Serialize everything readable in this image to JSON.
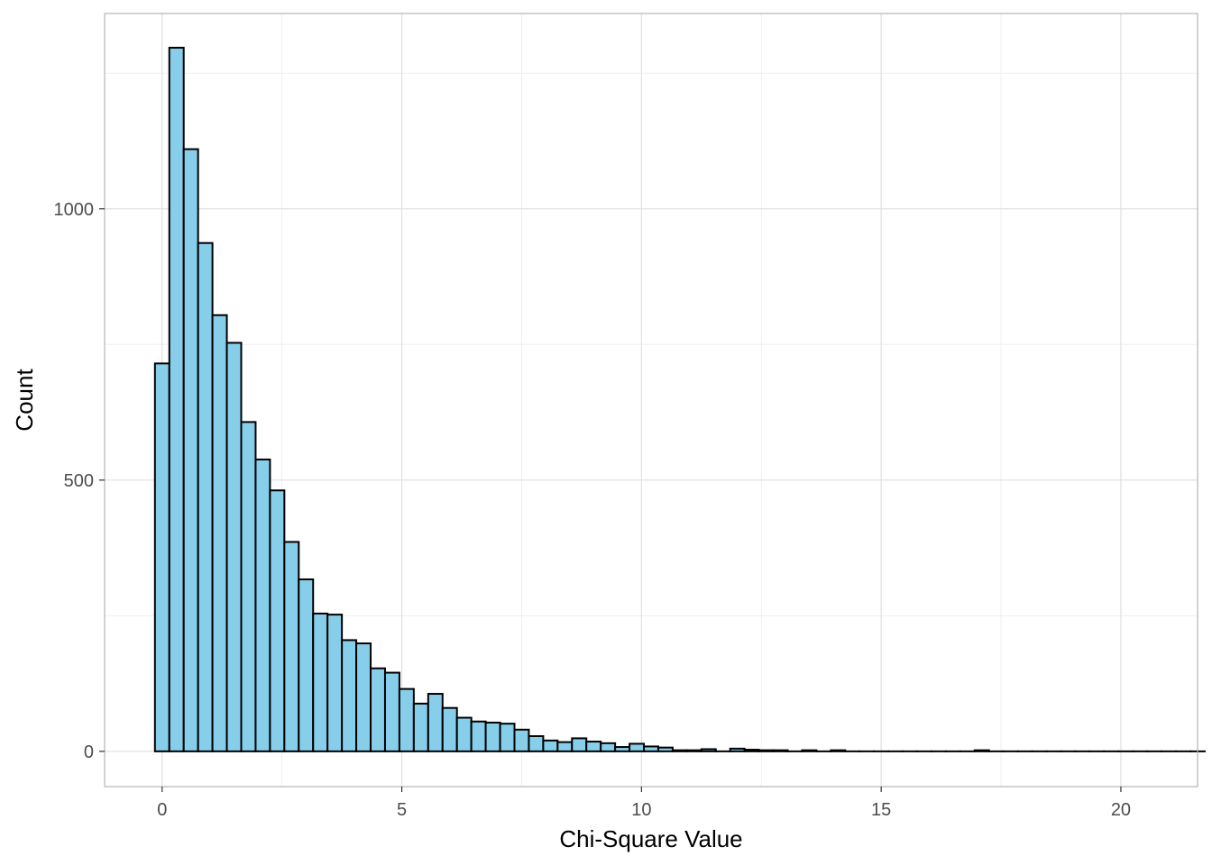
{
  "chart_data": {
    "type": "bar",
    "title": "",
    "xlabel": "Chi-Square Value",
    "ylabel": "Count",
    "xlim": [
      -1.2,
      21.6
    ],
    "ylim": [
      -65,
      1360
    ],
    "x_ticks": [
      0,
      5,
      10,
      15,
      20
    ],
    "x_tick_labels": [
      "0",
      "5",
      "10",
      "15",
      "20"
    ],
    "y_ticks": [
      0,
      500,
      1000
    ],
    "y_tick_labels": [
      "0",
      "500",
      "1000"
    ],
    "x_minor_ticks": [
      2.5,
      7.5,
      12.5,
      17.5
    ],
    "y_minor_ticks": [
      250,
      750,
      1250
    ],
    "grid": true,
    "legend": "none",
    "bin_width": 0.3,
    "bin_start": -0.15,
    "counts": [
      715,
      1297,
      1110,
      937,
      804,
      753,
      607,
      538,
      481,
      386,
      317,
      254,
      252,
      205,
      199,
      153,
      145,
      115,
      88,
      106,
      80,
      62,
      55,
      53,
      51,
      40,
      28,
      20,
      17,
      24,
      18,
      15,
      8,
      14,
      9,
      7,
      2,
      2,
      4,
      0,
      5,
      3,
      2,
      2,
      0,
      2,
      0,
      2,
      0,
      0,
      0,
      0,
      0,
      0,
      0,
      0,
      0,
      2,
      0,
      0,
      0,
      0,
      0,
      0,
      0,
      0,
      0,
      0,
      0,
      0,
      0,
      0,
      0
    ],
    "colors": {
      "bar_fill": "#87ceeb",
      "bar_stroke": "#000000",
      "grid_major": "#e0e0e0",
      "grid_minor": "#efefef",
      "panel_border": "#b3b3b3"
    }
  }
}
